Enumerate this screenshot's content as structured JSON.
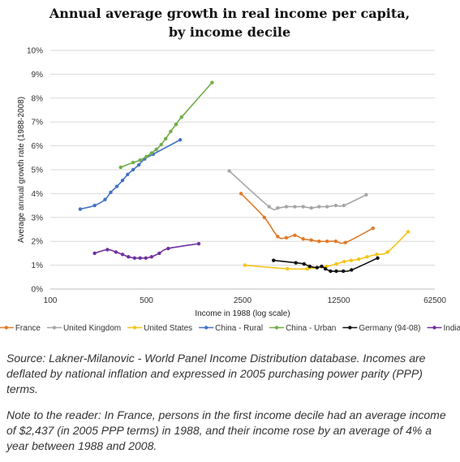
{
  "chart_data": {
    "type": "line",
    "title": [
      "Annual average growth in real income per capita,",
      "by income decile"
    ],
    "xlabel": "Income in 1988 (log scale)",
    "ylabel": "Average annual growth rate (1988-2008)",
    "xscale": "log",
    "xlim": [
      100,
      62500
    ],
    "ylim": [
      0,
      10
    ],
    "xticks": [
      100,
      500,
      2500,
      12500,
      62500
    ],
    "xtick_labels": [
      "100",
      "500",
      "2500",
      "12500",
      "62500"
    ],
    "yticks": [
      0,
      1,
      2,
      3,
      4,
      5,
      6,
      7,
      8,
      9,
      10
    ],
    "ytick_labels": [
      "0%",
      "1%",
      "2%",
      "3%",
      "4%",
      "5%",
      "6%",
      "7%",
      "8%",
      "9%",
      "10%"
    ],
    "grid": "horizontal",
    "legend_position": "bottom",
    "series": [
      {
        "name": "France",
        "color": "#E07B2A",
        "x": [
          2437,
          3600,
          4500,
          5200,
          6000,
          6900,
          7900,
          9000,
          10300,
          11900,
          14000,
          22200
        ],
        "y": [
          4.0,
          3.0,
          2.2,
          2.15,
          2.25,
          2.1,
          2.05,
          2.0,
          2.0,
          2.0,
          1.95,
          2.55
        ]
      },
      {
        "name": "United Kingdom",
        "color": "#A6A6A6",
        "x": [
          2000,
          3900,
          4500,
          5200,
          6000,
          6900,
          7900,
          9000,
          10300,
          11900,
          13600,
          19800
        ],
        "y": [
          4.95,
          3.45,
          3.4,
          3.45,
          3.45,
          3.45,
          3.4,
          3.45,
          3.45,
          3.5,
          3.5,
          3.95
        ]
      },
      {
        "name": "United States",
        "color": "#F5C518",
        "x": [
          2600,
          5300,
          7400,
          10200,
          12000,
          13700,
          15400,
          17500,
          20100,
          23600,
          28300,
          40000
        ],
        "y": [
          1.0,
          0.85,
          0.85,
          0.95,
          1.05,
          1.15,
          1.2,
          1.25,
          1.35,
          1.45,
          1.55,
          2.4
        ]
      },
      {
        "name": "China - Rural",
        "color": "#4472C4",
        "x": [
          165,
          210,
          250,
          275,
          305,
          335,
          365,
          400,
          440,
          485,
          560,
          880
        ],
        "y": [
          3.35,
          3.5,
          3.75,
          4.05,
          4.3,
          4.55,
          4.8,
          5.0,
          5.2,
          5.45,
          5.65,
          6.25
        ]
      },
      {
        "name": "China - Urban",
        "color": "#70AD47",
        "x": [
          325,
          400,
          450,
          500,
          545,
          590,
          640,
          690,
          750,
          820,
          900,
          1500
        ],
        "y": [
          5.1,
          5.3,
          5.4,
          5.55,
          5.7,
          5.85,
          6.05,
          6.3,
          6.6,
          6.9,
          7.2,
          8.65
        ]
      },
      {
        "name": "Germany (94-08)",
        "color": "#111111",
        "x": [
          4200,
          6100,
          7000,
          7700,
          8700,
          9400,
          10000,
          10900,
          12000,
          13500,
          15500,
          24000
        ],
        "y": [
          1.2,
          1.1,
          1.05,
          0.95,
          0.9,
          0.95,
          0.85,
          0.75,
          0.75,
          0.75,
          0.8,
          1.3
        ]
      },
      {
        "name": "India",
        "color": "#7030A0",
        "x": [
          210,
          260,
          300,
          335,
          370,
          410,
          450,
          495,
          545,
          620,
          720,
          1200
        ],
        "y": [
          1.5,
          1.65,
          1.55,
          1.45,
          1.35,
          1.3,
          1.3,
          1.3,
          1.35,
          1.5,
          1.7,
          1.9
        ]
      }
    ]
  },
  "notes": {
    "source": "Source: Lakner-Milanovic - World Panel Income Distribution database. Incomes are deflated by national inflation and expressed in 2005 purchasing power parity (PPP) terms.",
    "reader": "Note to the reader: In France, persons in the first income decile had an average income of $2,437 (in 2005 PPP terms) in 1988, and their income rose by an average of 4% a year between 1988 and 2008."
  }
}
